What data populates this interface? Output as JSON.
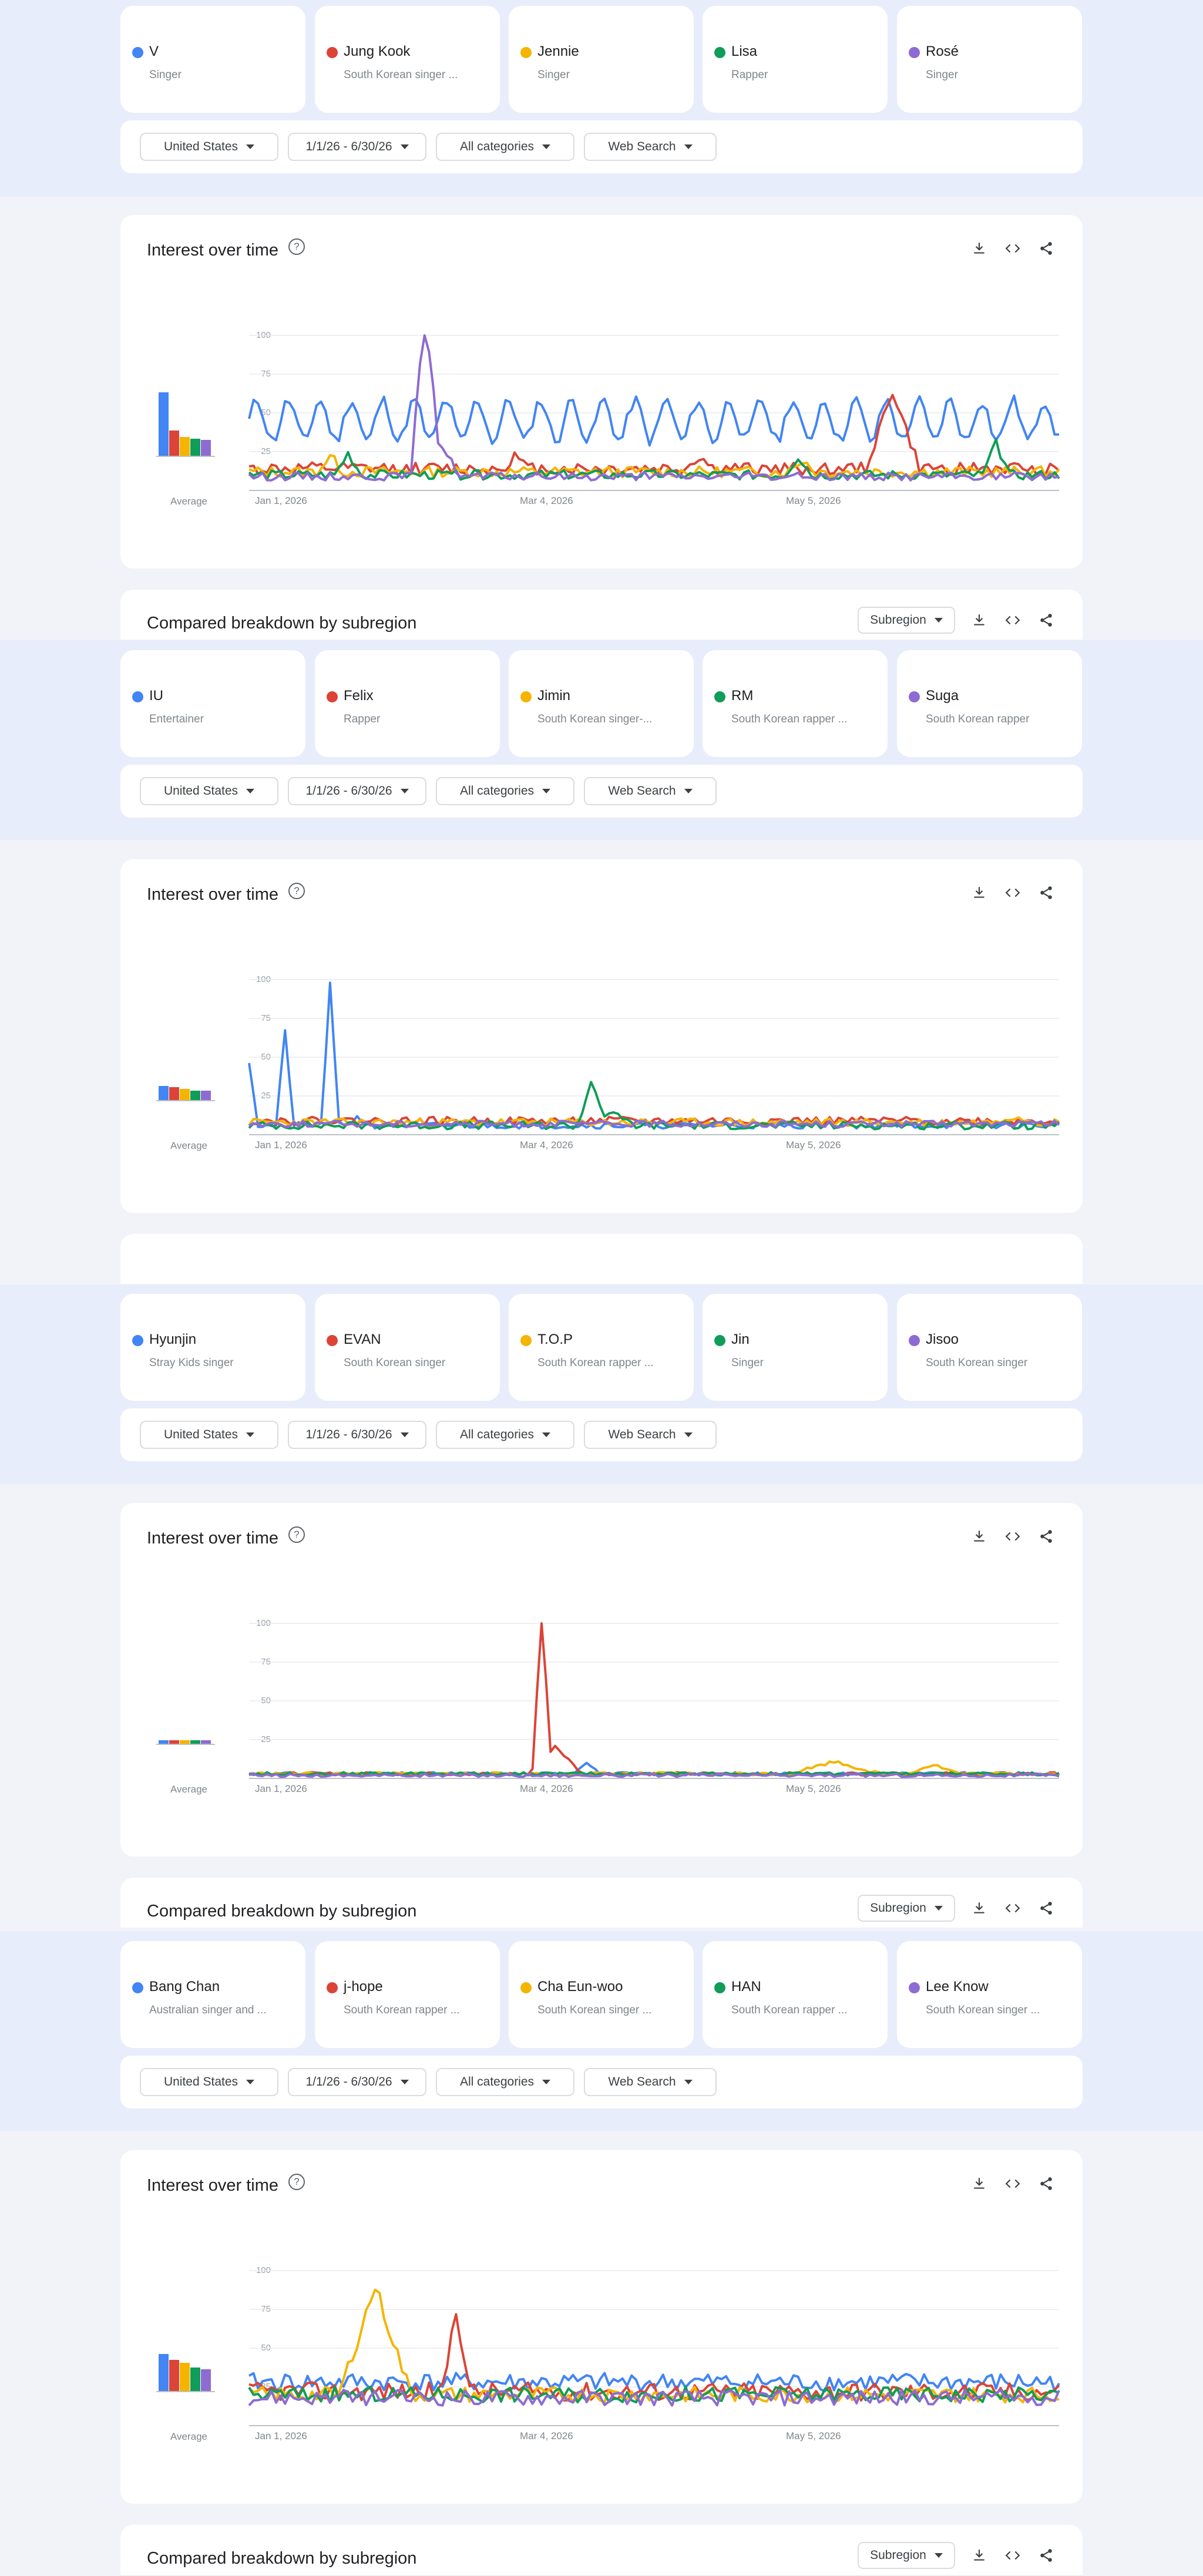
{
  "colors": [
    "#4285f4",
    "#db4437",
    "#f4b400",
    "#0f9d58",
    "#8e6bd2"
  ],
  "filters": {
    "region": "United States",
    "date": "1/1/26 - 6/30/26",
    "category": "All categories",
    "search_type": "Web Search"
  },
  "interest": {
    "title": "Interest over time",
    "help": "?",
    "avg_label": "Average",
    "y_ticks": [
      "100",
      "75",
      "50",
      "25"
    ],
    "x_ticks": [
      "Jan 1, 2026",
      "Mar 4, 2026",
      "May 5, 2026"
    ]
  },
  "breakdown": {
    "title": "Compared breakdown by subregion",
    "select": "Subregion"
  },
  "groups": [
    {
      "terms": [
        {
          "name": "V",
          "desc": "Singer"
        },
        {
          "name": "Jung Kook",
          "desc": "South Korean singer ..."
        },
        {
          "name": "Jennie",
          "desc": "Singer"
        },
        {
          "name": "Lisa",
          "desc": "Rapper"
        },
        {
          "name": "Rosé",
          "desc": "Singer"
        }
      ],
      "averages": [
        42,
        17,
        13,
        12,
        11
      ]
    },
    {
      "terms": [
        {
          "name": "IU",
          "desc": "Entertainer"
        },
        {
          "name": "Felix",
          "desc": "Rapper"
        },
        {
          "name": "Jimin",
          "desc": "South Korean singer-..."
        },
        {
          "name": "RM",
          "desc": "South Korean rapper ..."
        },
        {
          "name": "Suga",
          "desc": "South Korean rapper"
        }
      ],
      "averages": [
        10,
        9,
        8,
        7,
        7
      ]
    },
    {
      "terms": [
        {
          "name": "Hyunjin",
          "desc": "Stray Kids singer"
        },
        {
          "name": "EVAN",
          "desc": "South Korean singer"
        },
        {
          "name": "T.O.P",
          "desc": "South Korean rapper ..."
        },
        {
          "name": "Jin",
          "desc": "Singer"
        },
        {
          "name": "Jisoo",
          "desc": "South Korean singer"
        }
      ],
      "averages": [
        3,
        3,
        3,
        3,
        3
      ]
    },
    {
      "terms": [
        {
          "name": "Bang Chan",
          "desc": "Australian singer and ..."
        },
        {
          "name": "j-hope",
          "desc": "South Korean rapper ..."
        },
        {
          "name": "Cha Eun-woo",
          "desc": "South Korean singer ..."
        },
        {
          "name": "HAN",
          "desc": "South Korean rapper ..."
        },
        {
          "name": "Lee Know",
          "desc": "South Korean singer ..."
        }
      ],
      "averages": [
        25,
        21,
        19,
        16,
        15
      ]
    }
  ]
}
